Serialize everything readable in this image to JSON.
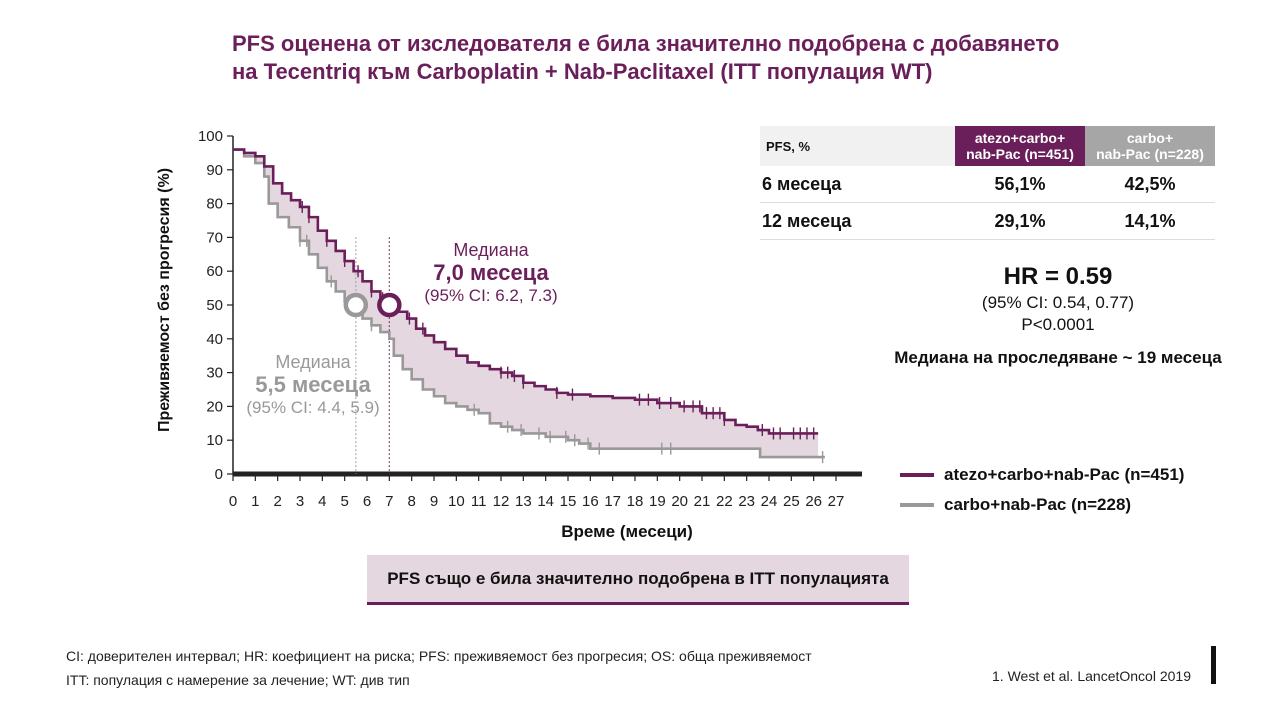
{
  "title": {
    "line1": "PFS оценена от изследователя е била значително подобрена с добавянето",
    "line2": "на Tecentriq към Carboplatin + Nab-Paclitaxel (ITT популация WT)"
  },
  "chart_data": {
    "type": "line",
    "subtype": "kaplan-meier step",
    "xlabel": "Време (месеци)",
    "ylabel": "Преживяемост без прогресия (%)",
    "xlim": [
      0,
      27
    ],
    "ylim": [
      0,
      100
    ],
    "x_ticks": [
      0,
      1,
      2,
      3,
      4,
      5,
      6,
      7,
      8,
      9,
      10,
      11,
      12,
      13,
      14,
      15,
      16,
      17,
      18,
      19,
      20,
      21,
      22,
      23,
      24,
      25,
      26,
      27
    ],
    "y_ticks": [
      0,
      10,
      20,
      30,
      40,
      50,
      60,
      70,
      80,
      90,
      100
    ],
    "grid": false,
    "legend_position": "bottom-right",
    "series": [
      {
        "name": "atezo+carbo+nab-Pac (n=451)",
        "color": "#6b1f5a",
        "points": [
          [
            0,
            96
          ],
          [
            0.5,
            95
          ],
          [
            1,
            94
          ],
          [
            1.4,
            91
          ],
          [
            1.8,
            86
          ],
          [
            2.2,
            83
          ],
          [
            2.6,
            81
          ],
          [
            3,
            79
          ],
          [
            3.4,
            76
          ],
          [
            3.8,
            72
          ],
          [
            4.2,
            69
          ],
          [
            4.6,
            66
          ],
          [
            5,
            63
          ],
          [
            5.4,
            60
          ],
          [
            5.8,
            57
          ],
          [
            6.2,
            54
          ],
          [
            6.6,
            52
          ],
          [
            7,
            50
          ],
          [
            7.4,
            48
          ],
          [
            7.8,
            46
          ],
          [
            8.2,
            43
          ],
          [
            8.6,
            41
          ],
          [
            9,
            39
          ],
          [
            9.5,
            37
          ],
          [
            10,
            35
          ],
          [
            10.5,
            33
          ],
          [
            11,
            32
          ],
          [
            11.5,
            31
          ],
          [
            12,
            30
          ],
          [
            12.5,
            29
          ],
          [
            13,
            27
          ],
          [
            13.5,
            26
          ],
          [
            14,
            25
          ],
          [
            14.5,
            24
          ],
          [
            15,
            23.5
          ],
          [
            16,
            23
          ],
          [
            17,
            22.5
          ],
          [
            18,
            22
          ],
          [
            19,
            21
          ],
          [
            20,
            20
          ],
          [
            21,
            18
          ],
          [
            22,
            16
          ],
          [
            22.5,
            14.5
          ],
          [
            23,
            14
          ],
          [
            23.5,
            13
          ],
          [
            24,
            12
          ],
          [
            26.2,
            12
          ]
        ],
        "censor_x": [
          3.1,
          3.4,
          4.2,
          5.0,
          5.6,
          6.2,
          6.7,
          7.3,
          7.9,
          8.5,
          12.0,
          12.3,
          12.6,
          13.0,
          14.5,
          15.2,
          18.2,
          18.6,
          19.1,
          19.6,
          20.2,
          20.6,
          20.9,
          21.2,
          21.5,
          21.8,
          22.0,
          23.7,
          24.2,
          24.5,
          25.1,
          25.4,
          25.7,
          26.0
        ]
      },
      {
        "name": "carbo+nab-Pac (n=228)",
        "color": "#999999",
        "points": [
          [
            0,
            96
          ],
          [
            0.5,
            94
          ],
          [
            1,
            92
          ],
          [
            1.4,
            88
          ],
          [
            1.6,
            80
          ],
          [
            2,
            76
          ],
          [
            2.5,
            73
          ],
          [
            3,
            69
          ],
          [
            3.4,
            65
          ],
          [
            3.8,
            61
          ],
          [
            4.2,
            57
          ],
          [
            4.6,
            54
          ],
          [
            5,
            51
          ],
          [
            5.4,
            48
          ],
          [
            5.8,
            46
          ],
          [
            6.2,
            44
          ],
          [
            6.6,
            42
          ],
          [
            7,
            40
          ],
          [
            7.2,
            35
          ],
          [
            7.6,
            31
          ],
          [
            8,
            28
          ],
          [
            8.5,
            25
          ],
          [
            9,
            23
          ],
          [
            9.5,
            21
          ],
          [
            10,
            20
          ],
          [
            10.5,
            19
          ],
          [
            11,
            18
          ],
          [
            11.5,
            15
          ],
          [
            12,
            14
          ],
          [
            12.5,
            13
          ],
          [
            13,
            12
          ],
          [
            14,
            11
          ],
          [
            15,
            10
          ],
          [
            15.5,
            9
          ],
          [
            16,
            7.5
          ],
          [
            21,
            7.5
          ],
          [
            23.5,
            7.5
          ],
          [
            23.6,
            5
          ],
          [
            26.5,
            5
          ]
        ],
        "censor_x": [
          3.0,
          3.3,
          4.4,
          5.3,
          6.2,
          10.8,
          12.3,
          12.9,
          13.7,
          14.2,
          14.9,
          15.3,
          15.9,
          16.4,
          19.2,
          19.6,
          26.4
        ]
      }
    ],
    "medians": [
      {
        "series": "atezo+carbo+nab-Pac (n=451)",
        "x": 7.0,
        "y": 50
      },
      {
        "series": "carbo+nab-Pac (n=228)",
        "x": 5.5,
        "y": 50
      }
    ]
  },
  "median_atezo": {
    "label": "Медиана",
    "value": "7,0 месеца",
    "ci": "(95% CI: 6.2, 7.3)"
  },
  "median_carbo": {
    "label": "Медиана",
    "value": "5,5 месеца",
    "ci": "(95% CI: 4.4, 5.9)"
  },
  "pfs_table": {
    "header_label": "PFS, %",
    "header_atezo_line1": "atezo+carbo+",
    "header_atezo_line2": "nab-Pac (n=451)",
    "header_carbo_line1": "carbo+",
    "header_carbo_line2": "nab-Pac (n=228)",
    "rows": [
      {
        "label": "6 месеца",
        "atezo": "56,1%",
        "carbo": "42,5%"
      },
      {
        "label": "12 месеца",
        "atezo": "29,1%",
        "carbo": "14,1%"
      }
    ]
  },
  "hazard": {
    "hr": "HR = 0.59",
    "ci": "(95% CI: 0.54, 0.77)",
    "p": "P<0.0001"
  },
  "followup": "Медиана на проследяване ~ 19 месеца",
  "legend": {
    "atezo": "atezo+carbo+nab-Pac (n=451)",
    "carbo": "carbo+nab-Pac (n=228)"
  },
  "colors": {
    "atezo": "#6b1f5a",
    "carbo": "#999999",
    "fill": "#e5d7df"
  },
  "callout": "PFS също е била значително подобрена в ITT популацията",
  "footnotes": {
    "line1": "CI: доверителен интервал; HR: коефициент на риска; PFS: преживяемост без прогресия; OS: обща преживяемост",
    "line2": "ITT: популация с намерение за лечение; WT: див тип"
  },
  "reference": "1.   West et al. LancetOncol 2019"
}
